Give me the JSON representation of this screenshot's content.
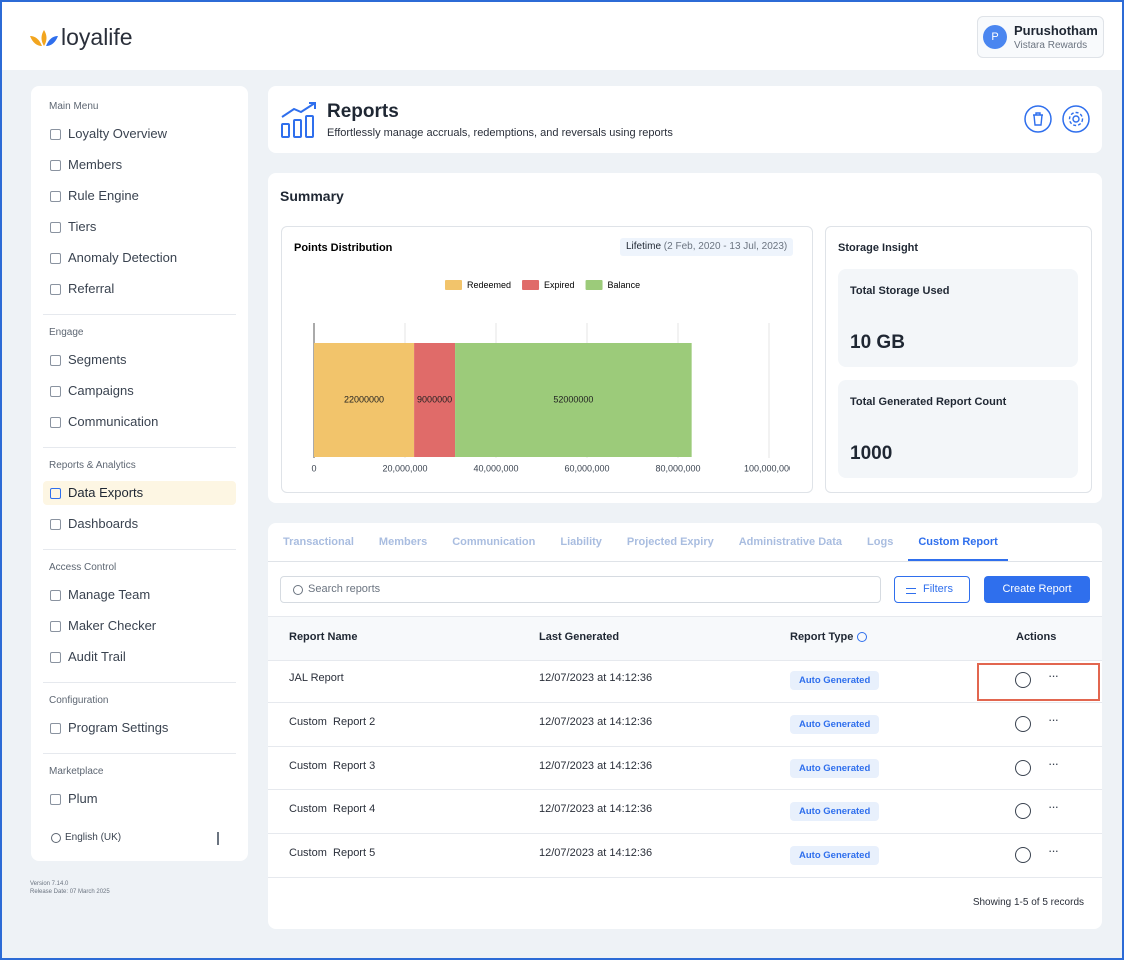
{
  "header": {
    "brand": "loyalife",
    "user": {
      "initial": "P",
      "name": "Purushotham",
      "program": "Vistara Rewards"
    }
  },
  "sidebar": {
    "sections": [
      {
        "title": "Main Menu",
        "items": [
          "Loyalty Overview",
          "Members",
          "Rule Engine",
          "Tiers",
          "Anomaly Detection",
          "Referral"
        ]
      },
      {
        "title": "Engage",
        "items": [
          "Segments",
          "Campaigns",
          "Communication"
        ]
      },
      {
        "title": "Reports & Analytics",
        "items": [
          "Data Exports",
          "Dashboards"
        ]
      },
      {
        "title": "Access Control",
        "items": [
          "Manage Team",
          "Maker Checker",
          "Audit Trail"
        ]
      },
      {
        "title": "Configuration",
        "items": [
          "Program Settings"
        ]
      },
      {
        "title": "Marketplace",
        "items": [
          "Plum"
        ]
      }
    ],
    "active": {
      "section": 2,
      "item": 0
    },
    "language": "English (UK)",
    "version": "Version 7.14.0",
    "release_date": "Release Date: 07 March 2025"
  },
  "page": {
    "title": "Reports",
    "subtitle": "Effortlessly manage accruals, redemptions, and reversals using reports"
  },
  "summary": {
    "title": "Summary",
    "storage": {
      "title": "Storage Insight",
      "cards": [
        {
          "label": "Total Storage Used",
          "value": "10 GB"
        },
        {
          "label": "Total Generated Report Count",
          "value": 1000
        }
      ]
    }
  },
  "chart_data": {
    "type": "bar",
    "orientation": "horizontal",
    "stacked": true,
    "title": "Points Distribution",
    "period": {
      "label": "Lifetime",
      "range": "(2 Feb, 2020 - 13 Jul, 2023)"
    },
    "categories": [
      null
    ],
    "series": [
      {
        "name": "Redeemed",
        "color": "#f2c46b",
        "values": [
          22000000
        ]
      },
      {
        "name": "Expired",
        "color": "#e06b69",
        "values": [
          9000000
        ]
      },
      {
        "name": "Balance",
        "color": "#9ccb7a",
        "values": [
          52000000
        ]
      }
    ],
    "xlim": [
      0,
      100000000
    ],
    "xticks": [
      0,
      {
        "value": 20000000,
        "label": "20,000,000"
      },
      {
        "value": 40000000,
        "label": "40,000,000"
      },
      {
        "value": 60000000,
        "label": "60,000,000"
      },
      {
        "value": 80000000,
        "label": "80,000,000"
      },
      {
        "value": 100000000,
        "label": "100,000,000"
      }
    ],
    "grid": true,
    "legend": "top"
  },
  "reports": {
    "tabs": [
      "Transactional",
      "Members",
      "Communication",
      "Liability",
      "Projected Expiry",
      "Administrative Data",
      "Logs",
      "Custom Report"
    ],
    "active_tab": 7,
    "search_placeholder": "Search reports",
    "filters": "Filters",
    "create": "Create Report",
    "columns": [
      "Report Name",
      "Last Generated",
      "Report Type",
      "Actions"
    ],
    "rows": [
      [
        "JAL Report",
        "12/07/2023 at 14:12:36",
        "Auto Generated"
      ],
      [
        "Custom  Report 2",
        "12/07/2023 at 14:12:36",
        "Auto Generated"
      ],
      [
        "Custom  Report 3",
        "12/07/2023 at 14:12:36",
        "Auto Generated"
      ],
      [
        "Custom  Report 4",
        "12/07/2023 at 14:12:36",
        "Auto Generated"
      ],
      [
        "Custom  Report 5",
        "12/07/2023 at 14:12:36",
        "Auto Generated"
      ]
    ],
    "footer": "Showing 1-5 of 5 records"
  }
}
